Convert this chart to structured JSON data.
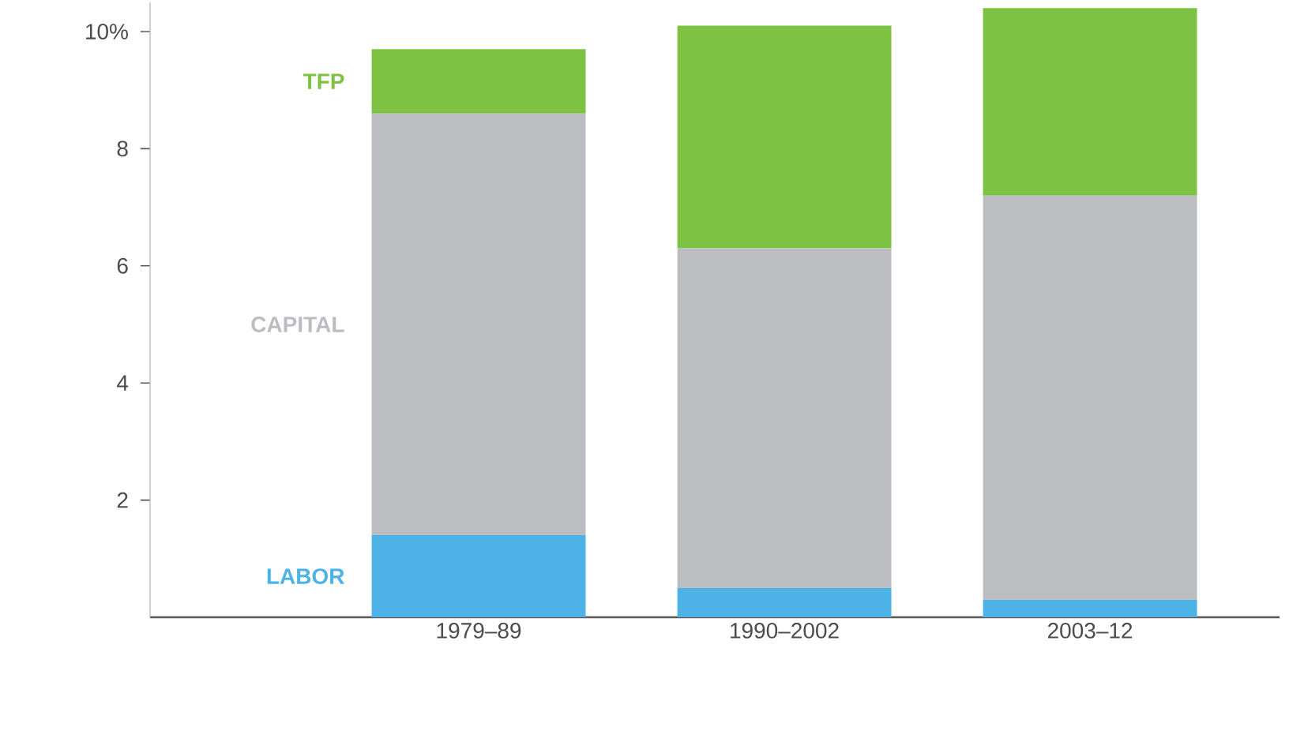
{
  "chart_data": {
    "type": "bar",
    "stacked": true,
    "legend": "left",
    "categories": [
      "1979–89",
      "1990–2002",
      "2003–12"
    ],
    "series": [
      {
        "name": "LABOR",
        "color": "#4db3e6",
        "values": [
          1.4,
          0.5,
          0.3
        ]
      },
      {
        "name": "CAPITAL",
        "color": "#bcbdc1",
        "values": [
          7.2,
          5.8,
          6.9
        ]
      },
      {
        "name": "TFP",
        "color": "#7dc242",
        "values": [
          1.1,
          3.8,
          3.2
        ]
      }
    ],
    "ylim": [
      0,
      10.5
    ],
    "yticks": [
      2,
      4,
      6,
      8,
      {
        "value": 10,
        "label": "10%"
      }
    ]
  }
}
